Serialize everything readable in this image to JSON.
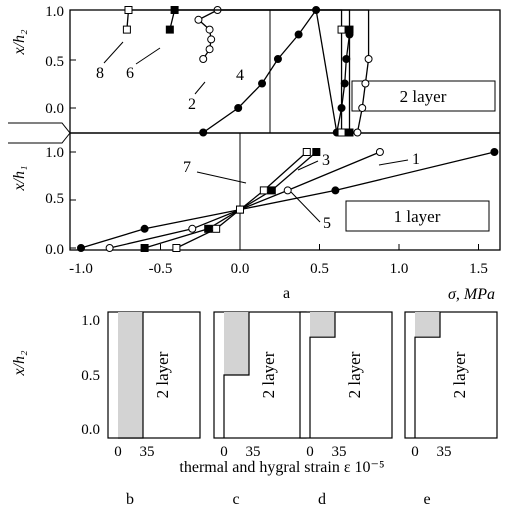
{
  "colors": {
    "line": "#000000",
    "shade": "#d3d3d3",
    "marker_open": "#ffffff",
    "marker_filled": "#000000"
  },
  "chart_data": [
    {
      "type": "line",
      "panel": "a",
      "caption": "a",
      "xlabel": "σ, MPa",
      "xlim": [
        -1.0,
        1.65
      ],
      "x_ticks": [
        "-1.0",
        "-0.5",
        "0.0",
        "0.5",
        "1.0",
        "1.5"
      ],
      "upper": {
        "label": "2 layer",
        "ylabel": "x/h₂",
        "ylim": [
          -0.25,
          1.0
        ],
        "y_ticks": [
          "0.0",
          "0.5",
          "1.0"
        ],
        "series": [
          {
            "name": "2",
            "marker": "filled-circle",
            "x": [
              -0.42,
              -0.2,
              -0.05,
              0.05,
              0.18,
              0.29,
              0.42,
              0.45,
              0.47,
              0.48,
              0.5
            ],
            "y": [
              -0.25,
              0.0,
              0.25,
              0.5,
              0.75,
              1.0,
              -0.25,
              0.0,
              0.25,
              0.5,
              0.75
            ]
          },
          {
            "name": "4",
            "marker": "open-circle",
            "x": [
              -0.42,
              -0.38,
              -0.37,
              -0.38,
              -0.45,
              -0.33,
              0.55,
              0.58,
              0.6,
              0.62
            ],
            "y": [
              0.5,
              0.6,
              0.7,
              0.8,
              0.9,
              1.0,
              -0.25,
              0.0,
              0.25,
              0.5
            ]
          },
          {
            "name": "6",
            "marker": "filled-square",
            "x": [
              -0.63,
              -0.6,
              0.5,
              0.5
            ],
            "y": [
              0.8,
              1.0,
              -0.25,
              0.8
            ]
          },
          {
            "name": "8",
            "marker": "open-square",
            "x": [
              -0.9,
              -0.89,
              0.45,
              0.45
            ],
            "y": [
              0.8,
              1.0,
              -0.25,
              0.8
            ]
          }
        ]
      },
      "lower": {
        "label": "1 layer",
        "ylabel": "x/h₁",
        "ylim": [
          0.0,
          1.0
        ],
        "y_ticks": [
          "0.0",
          "0.5",
          "1.0"
        ],
        "series": [
          {
            "name": "1",
            "marker": "filled-circle",
            "x": [
              -1.0,
              -0.6,
              0.0,
              0.6,
              1.6
            ],
            "y": [
              0.0,
              0.2,
              0.4,
              0.6,
              1.0
            ]
          },
          {
            "name": "3",
            "marker": "open-circle",
            "x": [
              -0.82,
              -0.3,
              0.0,
              0.3,
              0.88
            ],
            "y": [
              0.0,
              0.2,
              0.4,
              0.6,
              1.0
            ]
          },
          {
            "name": "5",
            "marker": "filled-square",
            "x": [
              -0.6,
              -0.2,
              0.0,
              0.2,
              0.48
            ],
            "y": [
              0.0,
              0.2,
              0.4,
              0.6,
              1.0
            ]
          },
          {
            "name": "7",
            "marker": "open-square",
            "x": [
              -0.4,
              -0.15,
              0.0,
              0.15,
              0.42
            ],
            "y": [
              0.0,
              0.2,
              0.4,
              0.6,
              1.0
            ]
          }
        ]
      }
    },
    {
      "type": "area",
      "panel": "b",
      "caption": "b",
      "label": "2 layer",
      "ylabel": "x/h₂",
      "ylim": [
        0.0,
        1.0
      ],
      "y_ticks": [
        "0.0",
        "0.5",
        "1.0"
      ],
      "x_ticks": [
        "0",
        "35"
      ],
      "x": [
        0,
        35,
        35,
        0
      ],
      "y": [
        0.0,
        0.0,
        1.0,
        1.0
      ]
    },
    {
      "type": "area",
      "panel": "c",
      "caption": "c",
      "label": "2 layer",
      "x_ticks": [
        "0",
        "35"
      ],
      "x": [
        0,
        35,
        35,
        0
      ],
      "y": [
        0.5,
        0.5,
        1.0,
        1.0
      ]
    },
    {
      "type": "area",
      "panel": "d",
      "caption": "d",
      "label": "2 layer",
      "x_ticks": [
        "0",
        "35"
      ],
      "x": [
        0,
        35,
        35,
        0
      ],
      "y": [
        0.8,
        0.8,
        1.0,
        1.0
      ]
    },
    {
      "type": "area",
      "panel": "e",
      "caption": "e",
      "label": "2 layer",
      "x_ticks": [
        "0",
        "35"
      ],
      "x": [
        0,
        35,
        35,
        0
      ],
      "y": [
        0.8,
        0.8,
        1.0,
        1.0
      ]
    }
  ],
  "strain_xlabel": "thermal and hygral strain ε 10⁻⁵"
}
